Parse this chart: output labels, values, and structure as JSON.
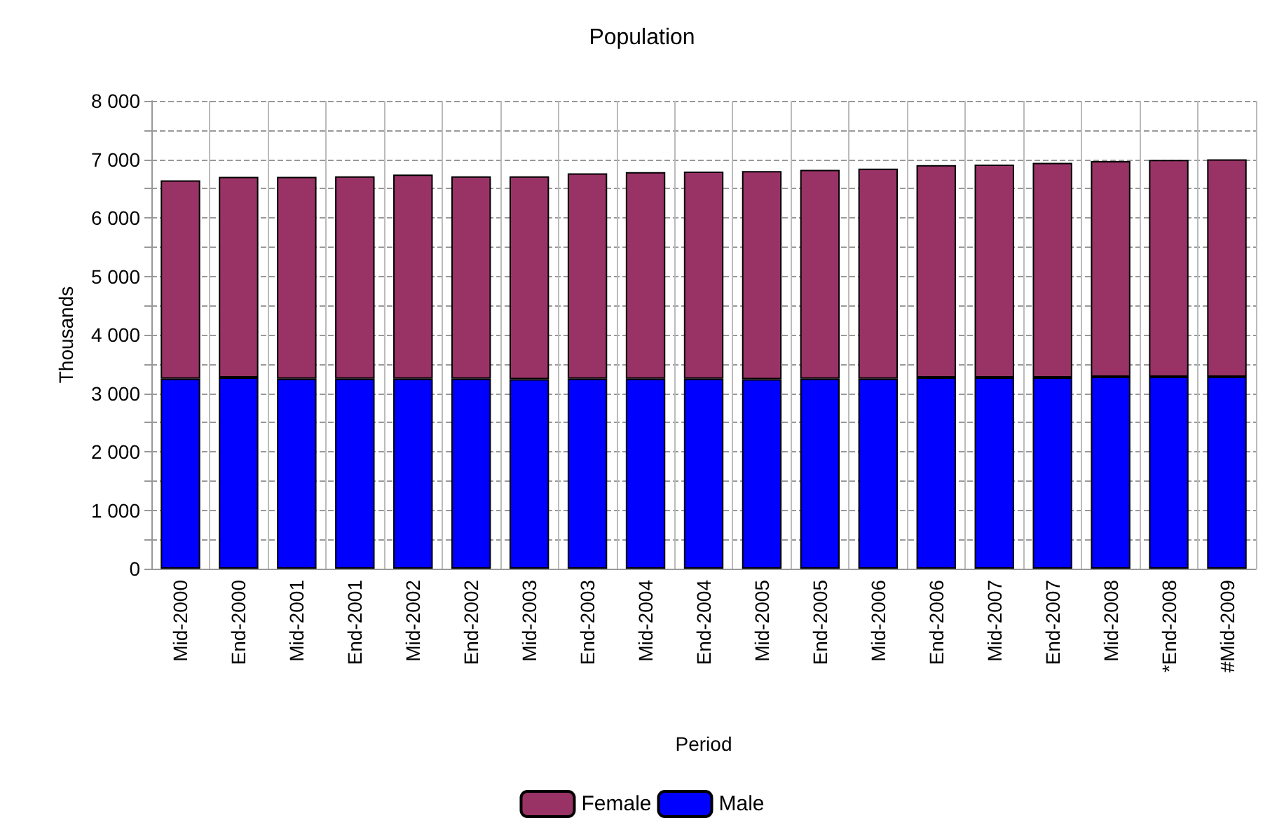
{
  "chart_data": {
    "type": "bar",
    "stacked": true,
    "title": "Population",
    "xlabel": "Period",
    "ylabel": "Thousands",
    "categories": [
      "Mid-2000",
      "End-2000",
      "Mid-2001",
      "End-2001",
      "Mid-2002",
      "End-2002",
      "Mid-2003",
      "End-2003",
      "Mid-2004",
      "End-2004",
      "Mid-2005",
      "End-2005",
      "Mid-2006",
      "End-2006",
      "Mid-2007",
      "End-2007",
      "Mid-2008",
      "*End-2008",
      "#Mid-2009"
    ],
    "series": [
      {
        "name": "Male",
        "color": "#0000ff",
        "values": [
          3250,
          3270,
          3250,
          3250,
          3250,
          3250,
          3240,
          3250,
          3250,
          3250,
          3240,
          3250,
          3250,
          3270,
          3270,
          3270,
          3280,
          3280,
          3280
        ]
      },
      {
        "name": "Female",
        "color": "#993366",
        "values": [
          3390,
          3430,
          3450,
          3460,
          3490,
          3460,
          3470,
          3510,
          3530,
          3540,
          3560,
          3570,
          3590,
          3630,
          3640,
          3670,
          3690,
          3710,
          3720
        ]
      }
    ],
    "ylim": [
      0,
      8000
    ],
    "yticks": [
      {
        "value": 0,
        "label": "0"
      },
      {
        "value": 500,
        "label": null
      },
      {
        "value": 1000,
        "label": "1 000"
      },
      {
        "value": 1500,
        "label": null
      },
      {
        "value": 2000,
        "label": "2 000"
      },
      {
        "value": 2500,
        "label": null
      },
      {
        "value": 3000,
        "label": "3 000"
      },
      {
        "value": 3500,
        "label": null
      },
      {
        "value": 4000,
        "label": "4 000"
      },
      {
        "value": 4500,
        "label": null
      },
      {
        "value": 5000,
        "label": "5 000"
      },
      {
        "value": 5500,
        "label": null
      },
      {
        "value": 6000,
        "label": "6 000"
      },
      {
        "value": 6500,
        "label": null
      },
      {
        "value": 7000,
        "label": "7 000"
      },
      {
        "value": 7500,
        "label": null
      },
      {
        "value": 8000,
        "label": "8 000"
      }
    ],
    "grid": true,
    "legend": "bottom"
  }
}
